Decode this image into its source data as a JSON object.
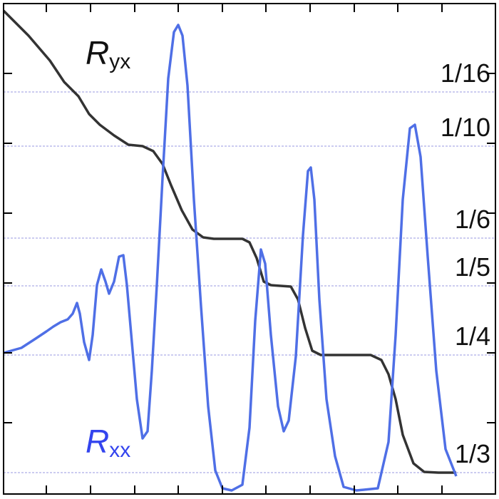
{
  "chart_data": {
    "type": "line",
    "xlim": [
      0,
      690
    ],
    "ylim": [
      0,
      688
    ],
    "xticks": [
      60,
      122,
      184,
      245,
      307,
      368,
      430,
      492,
      553,
      615
    ],
    "yticks": [
      100,
      198,
      296,
      394,
      492,
      590
    ],
    "plateaus": [
      {
        "label": "1/16",
        "value": 564
      },
      {
        "label": "1/10",
        "value": 488
      },
      {
        "label": "1/6",
        "value": 359
      },
      {
        "label": "1/5",
        "value": 292
      },
      {
        "label": "1/4",
        "value": 195
      },
      {
        "label": "1/3",
        "value": 30
      }
    ],
    "plateau_color": "#9a9ae0",
    "series": [
      {
        "name": "R",
        "subscript": "yx",
        "color": "#333333",
        "x": [
          0,
          35,
          65,
          85,
          95,
          105,
          120,
          135,
          155,
          175,
          195,
          210,
          223,
          235,
          250,
          265,
          280,
          295,
          335,
          345,
          355,
          365,
          375,
          403,
          413,
          423,
          433,
          445,
          515,
          530,
          540,
          550,
          560,
          575,
          590,
          610,
          635
        ],
        "values": [
          678,
          643,
          608,
          578,
          568,
          558,
          533,
          518,
          503,
          490,
          488,
          481,
          463,
          433,
          398,
          371,
          360,
          358,
          358,
          353,
          331,
          298,
          293,
          291,
          273,
          233,
          201,
          195,
          195,
          188,
          168,
          133,
          83,
          43,
          31,
          30,
          30
        ]
      },
      {
        "name": "R",
        "subscript": "xx",
        "color": "#4f6fe6",
        "x": [
          0,
          25,
          45,
          60,
          70,
          80,
          90,
          97,
          103,
          107,
          113,
          120,
          125,
          131,
          137,
          143,
          148,
          155,
          162,
          168,
          173,
          180,
          187,
          195,
          202,
          208,
          215,
          223,
          231,
          239,
          245,
          251,
          258,
          267,
          277,
          287,
          297,
          307,
          320,
          335,
          345,
          353,
          361,
          367,
          375,
          385,
          393,
          400,
          410,
          420,
          427,
          431,
          436,
          443,
          453,
          465,
          477,
          495,
          525,
          540,
          550,
          560,
          570,
          577,
          585,
          595,
          607,
          620,
          635
        ],
        "values": [
          198,
          205,
          218,
          228,
          235,
          241,
          245,
          253,
          268,
          253,
          213,
          188,
          223,
          293,
          315,
          298,
          281,
          298,
          333,
          335,
          293,
          213,
          133,
          78,
          88,
          173,
          293,
          443,
          583,
          648,
          658,
          643,
          573,
          413,
          263,
          123,
          33,
          8,
          5,
          13,
          93,
          243,
          343,
          323,
          223,
          123,
          88,
          103,
          193,
          363,
          453,
          458,
          413,
          273,
          133,
          53,
          10,
          5,
          8,
          73,
          223,
          413,
          513,
          518,
          473,
          333,
          173,
          63,
          25
        ]
      }
    ]
  }
}
